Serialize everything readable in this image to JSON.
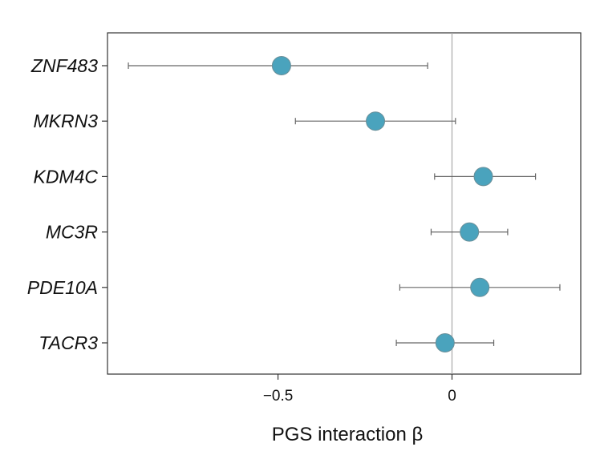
{
  "chart_data": {
    "type": "scatter",
    "subtype": "forest-plot",
    "title": "",
    "xlabel": "PGS interaction β",
    "ylabel": "",
    "xlim": [
      -0.99,
      0.37
    ],
    "xticks": [
      -0.5,
      0
    ],
    "xtick_labels": [
      "−0.5",
      "0"
    ],
    "reference_line_x": 0,
    "grid": false,
    "colors": {
      "point": "#4aa3bd",
      "point_edge": "#6a8f99",
      "errorbar": "#666666",
      "axis": "#333333",
      "refline": "#a8a8a8"
    },
    "genes": [
      {
        "label": "ZNF483",
        "beta": -0.49,
        "ci_low": -0.93,
        "ci_high": -0.07
      },
      {
        "label": "MKRN3",
        "beta": -0.22,
        "ci_low": -0.45,
        "ci_high": 0.01
      },
      {
        "label": "KDM4C",
        "beta": 0.09,
        "ci_low": -0.05,
        "ci_high": 0.24
      },
      {
        "label": "MC3R",
        "beta": 0.05,
        "ci_low": -0.06,
        "ci_high": 0.16
      },
      {
        "label": "PDE10A",
        "beta": 0.08,
        "ci_low": -0.15,
        "ci_high": 0.31
      },
      {
        "label": "TACR3",
        "beta": -0.02,
        "ci_low": -0.16,
        "ci_high": 0.12
      }
    ]
  }
}
